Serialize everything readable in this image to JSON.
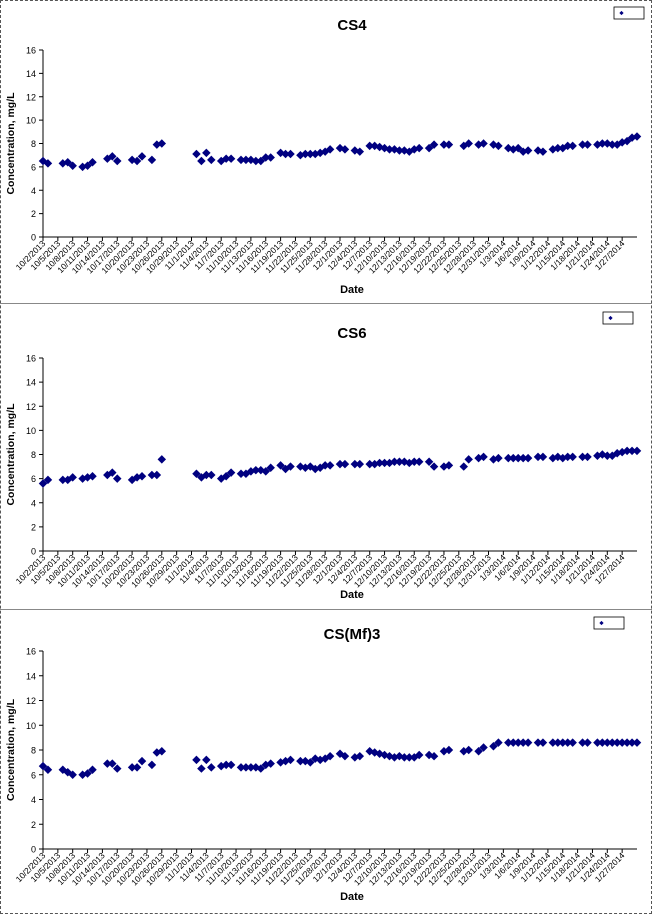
{
  "chart_data": [
    {
      "type": "scatter",
      "title": "CS4",
      "xlabel": "Date",
      "ylabel": "Concentration, mg/L",
      "ylim": [
        0,
        16
      ],
      "yticks": [
        0,
        2,
        4,
        6,
        8,
        10,
        12,
        14,
        16
      ],
      "grid": false,
      "legend_position": "top-right",
      "marker_color": "#000080",
      "xtick_labels": [
        "10/2/2013",
        "10/5/2013",
        "10/8/2013",
        "10/11/2013",
        "10/14/2013",
        "10/17/2013",
        "10/20/2013",
        "10/23/2013",
        "10/26/2013",
        "10/29/2013",
        "11/1/2013",
        "11/4/2013",
        "11/7/2013",
        "11/10/2013",
        "11/13/2013",
        "11/16/2013",
        "11/19/2013",
        "11/22/2013",
        "11/25/2013",
        "11/28/2013",
        "12/1/2013",
        "12/4/2013",
        "12/7/2013",
        "12/10/2013",
        "12/13/2013",
        "12/16/2013",
        "12/19/2013",
        "12/22/2013",
        "12/25/2013",
        "12/28/2013",
        "12/31/2013",
        "1/3/2014",
        "1/6/2014",
        "1/9/2014",
        "1/12/2014",
        "1/15/2014",
        "1/18/2014",
        "1/21/2014",
        "1/24/2014",
        "1/27/2014"
      ],
      "series": [
        {
          "x": [
            "10/2/2013",
            "10/3/2013",
            "10/6/2013",
            "10/7/2013",
            "10/8/2013",
            "10/10/2013",
            "10/11/2013",
            "10/12/2013",
            "10/15/2013",
            "10/16/2013",
            "10/17/2013",
            "10/20/2013",
            "10/21/2013",
            "10/22/2013",
            "10/24/2013",
            "10/25/2013",
            "10/26/2013",
            "11/2/2013",
            "11/3/2013",
            "11/4/2013",
            "11/5/2013",
            "11/7/2013",
            "11/8/2013",
            "11/9/2013",
            "11/11/2013",
            "11/12/2013",
            "11/13/2013",
            "11/14/2013",
            "11/15/2013",
            "11/16/2013",
            "11/17/2013",
            "11/19/2013",
            "11/20/2013",
            "11/21/2013",
            "11/23/2013",
            "11/24/2013",
            "11/25/2013",
            "11/26/2013",
            "11/27/2013",
            "11/28/2013",
            "11/29/2013",
            "12/1/2013",
            "12/2/2013",
            "12/4/2013",
            "12/5/2013",
            "12/7/2013",
            "12/8/2013",
            "12/9/2013",
            "12/10/2013",
            "12/11/2013",
            "12/12/2013",
            "12/13/2013",
            "12/14/2013",
            "12/15/2013",
            "12/16/2013",
            "12/17/2013",
            "12/19/2013",
            "12/20/2013",
            "12/22/2013",
            "12/23/2013",
            "12/26/2013",
            "12/27/2013",
            "12/29/2013",
            "12/30/2013",
            "1/1/2014",
            "1/2/2014",
            "1/4/2014",
            "1/5/2014",
            "1/6/2014",
            "1/7/2014",
            "1/8/2014",
            "1/10/2014",
            "1/11/2014",
            "1/13/2014",
            "1/14/2014",
            "1/15/2014",
            "1/16/2014",
            "1/17/2014",
            "1/19/2014",
            "1/20/2014",
            "1/22/2014",
            "1/23/2014",
            "1/24/2014",
            "1/25/2014",
            "1/26/2014",
            "1/27/2014",
            "1/28/2014",
            "1/29/2014",
            "1/30/2014"
          ],
          "y": [
            6.5,
            6.3,
            6.3,
            6.4,
            6.1,
            6.0,
            6.1,
            6.4,
            6.7,
            6.9,
            6.5,
            6.6,
            6.5,
            6.9,
            6.6,
            7.9,
            8.0,
            7.1,
            6.5,
            7.2,
            6.6,
            6.5,
            6.7,
            6.7,
            6.6,
            6.6,
            6.6,
            6.5,
            6.5,
            6.8,
            6.8,
            7.2,
            7.1,
            7.1,
            7.0,
            7.1,
            7.1,
            7.1,
            7.2,
            7.3,
            7.5,
            7.6,
            7.5,
            7.4,
            7.3,
            7.8,
            7.8,
            7.7,
            7.6,
            7.5,
            7.5,
            7.4,
            7.4,
            7.3,
            7.5,
            7.6,
            7.6,
            7.9,
            7.9,
            7.9,
            7.8,
            8.0,
            7.9,
            8.0,
            7.9,
            7.8,
            7.6,
            7.5,
            7.6,
            7.3,
            7.4,
            7.4,
            7.3,
            7.5,
            7.6,
            7.6,
            7.8,
            7.8,
            7.9,
            7.9,
            7.9,
            8.0,
            8.0,
            7.9,
            7.9,
            8.1,
            8.2,
            8.5,
            8.6
          ]
        }
      ]
    },
    {
      "type": "scatter",
      "title": "CS6",
      "xlabel": "Date",
      "ylabel": "Concentration, mg/L",
      "ylim": [
        0,
        16
      ],
      "yticks": [
        0,
        2,
        4,
        6,
        8,
        10,
        12,
        14,
        16
      ],
      "grid": false,
      "legend_position": "top-right",
      "marker_color": "#000080",
      "xtick_labels": [
        "10/2/2013",
        "10/5/2013",
        "10/8/2013",
        "10/11/2013",
        "10/14/2013",
        "10/17/2013",
        "10/20/2013",
        "10/23/2013",
        "10/26/2013",
        "10/29/2013",
        "11/1/2013",
        "11/4/2013",
        "11/7/2013",
        "11/10/2013",
        "11/13/2013",
        "11/16/2013",
        "11/19/2013",
        "11/22/2013",
        "11/25/2013",
        "11/28/2013",
        "12/1/2013",
        "12/4/2013",
        "12/7/2013",
        "12/10/2013",
        "12/13/2013",
        "12/16/2013",
        "12/19/2013",
        "12/22/2013",
        "12/25/2013",
        "12/28/2013",
        "12/31/2013",
        "1/3/2014",
        "1/6/2014",
        "1/9/2014",
        "1/12/2014",
        "1/15/2014",
        "1/18/2014",
        "1/21/2014",
        "1/24/2014",
        "1/27/2014"
      ],
      "series": [
        {
          "x": [
            "10/2/2013",
            "10/3/2013",
            "10/6/2013",
            "10/7/2013",
            "10/8/2013",
            "10/10/2013",
            "10/11/2013",
            "10/12/2013",
            "10/15/2013",
            "10/16/2013",
            "10/17/2013",
            "10/20/2013",
            "10/21/2013",
            "10/22/2013",
            "10/24/2013",
            "10/25/2013",
            "10/26/2013",
            "11/2/2013",
            "11/3/2013",
            "11/4/2013",
            "11/5/2013",
            "11/7/2013",
            "11/8/2013",
            "11/9/2013",
            "11/11/2013",
            "11/12/2013",
            "11/13/2013",
            "11/14/2013",
            "11/15/2013",
            "11/16/2013",
            "11/17/2013",
            "11/19/2013",
            "11/20/2013",
            "11/21/2013",
            "11/23/2013",
            "11/24/2013",
            "11/25/2013",
            "11/26/2013",
            "11/27/2013",
            "11/28/2013",
            "11/29/2013",
            "12/1/2013",
            "12/2/2013",
            "12/4/2013",
            "12/5/2013",
            "12/7/2013",
            "12/8/2013",
            "12/9/2013",
            "12/10/2013",
            "12/11/2013",
            "12/12/2013",
            "12/13/2013",
            "12/14/2013",
            "12/15/2013",
            "12/16/2013",
            "12/17/2013",
            "12/19/2013",
            "12/20/2013",
            "12/22/2013",
            "12/23/2013",
            "12/26/2013",
            "12/27/2013",
            "12/29/2013",
            "12/30/2013",
            "1/1/2014",
            "1/2/2014",
            "1/4/2014",
            "1/5/2014",
            "1/6/2014",
            "1/7/2014",
            "1/8/2014",
            "1/10/2014",
            "1/11/2014",
            "1/13/2014",
            "1/14/2014",
            "1/15/2014",
            "1/16/2014",
            "1/17/2014",
            "1/19/2014",
            "1/20/2014",
            "1/22/2014",
            "1/23/2014",
            "1/24/2014",
            "1/25/2014",
            "1/26/2014",
            "1/27/2014",
            "1/28/2014",
            "1/29/2014",
            "1/30/2014"
          ],
          "y": [
            5.6,
            5.9,
            5.9,
            5.9,
            6.1,
            6.0,
            6.1,
            6.2,
            6.3,
            6.5,
            6.0,
            5.9,
            6.1,
            6.2,
            6.3,
            6.3,
            7.6,
            6.4,
            6.1,
            6.3,
            6.3,
            6.0,
            6.2,
            6.5,
            6.4,
            6.4,
            6.6,
            6.7,
            6.7,
            6.6,
            6.9,
            7.1,
            6.8,
            7.0,
            7.0,
            6.9,
            7.0,
            6.8,
            6.9,
            7.1,
            7.1,
            7.2,
            7.2,
            7.2,
            7.2,
            7.2,
            7.2,
            7.3,
            7.3,
            7.3,
            7.4,
            7.4,
            7.4,
            7.3,
            7.4,
            7.4,
            7.4,
            7.0,
            7.0,
            7.1,
            7.0,
            7.6,
            7.7,
            7.8,
            7.6,
            7.7,
            7.7,
            7.7,
            7.7,
            7.7,
            7.7,
            7.8,
            7.8,
            7.7,
            7.8,
            7.7,
            7.8,
            7.8,
            7.8,
            7.8,
            7.9,
            8.0,
            7.9,
            7.9,
            8.1,
            8.2,
            8.3,
            8.3,
            8.3
          ]
        }
      ]
    },
    {
      "type": "scatter",
      "title": "CS(Mf)3",
      "xlabel": "Date",
      "ylabel": "Concentration, mg/L",
      "ylim": [
        0,
        16
      ],
      "yticks": [
        0,
        2,
        4,
        6,
        8,
        10,
        12,
        14,
        16
      ],
      "grid": false,
      "legend_position": "top-right",
      "marker_color": "#000080",
      "xtick_labels": [
        "10/2/2013",
        "10/5/2013",
        "10/8/2013",
        "10/11/2013",
        "10/14/2013",
        "10/17/2013",
        "10/20/2013",
        "10/23/2013",
        "10/26/2013",
        "10/29/2013",
        "11/1/2013",
        "11/4/2013",
        "11/7/2013",
        "11/10/2013",
        "11/13/2013",
        "11/16/2013",
        "11/19/2013",
        "11/22/2013",
        "11/25/2013",
        "11/28/2013",
        "12/1/2013",
        "12/4/2013",
        "12/7/2013",
        "12/10/2013",
        "12/13/2013",
        "12/16/2013",
        "12/19/2013",
        "12/22/2013",
        "12/25/2013",
        "12/28/2013",
        "12/31/2013",
        "1/3/2014",
        "1/6/2014",
        "1/9/2014",
        "1/12/2014",
        "1/15/2014",
        "1/18/2014",
        "1/21/2014",
        "1/24/2014",
        "1/27/2014"
      ],
      "series": [
        {
          "x": [
            "10/2/2013",
            "10/3/2013",
            "10/6/2013",
            "10/7/2013",
            "10/8/2013",
            "10/10/2013",
            "10/11/2013",
            "10/12/2013",
            "10/15/2013",
            "10/16/2013",
            "10/17/2013",
            "10/20/2013",
            "10/21/2013",
            "10/22/2013",
            "10/24/2013",
            "10/25/2013",
            "10/26/2013",
            "11/2/2013",
            "11/3/2013",
            "11/4/2013",
            "11/5/2013",
            "11/7/2013",
            "11/8/2013",
            "11/9/2013",
            "11/11/2013",
            "11/12/2013",
            "11/13/2013",
            "11/14/2013",
            "11/15/2013",
            "11/16/2013",
            "11/17/2013",
            "11/19/2013",
            "11/20/2013",
            "11/21/2013",
            "11/23/2013",
            "11/24/2013",
            "11/25/2013",
            "11/26/2013",
            "11/27/2013",
            "11/28/2013",
            "11/29/2013",
            "12/1/2013",
            "12/2/2013",
            "12/4/2013",
            "12/5/2013",
            "12/7/2013",
            "12/8/2013",
            "12/9/2013",
            "12/10/2013",
            "12/11/2013",
            "12/12/2013",
            "12/13/2013",
            "12/14/2013",
            "12/15/2013",
            "12/16/2013",
            "12/17/2013",
            "12/19/2013",
            "12/20/2013",
            "12/22/2013",
            "12/23/2013",
            "12/26/2013",
            "12/27/2013",
            "12/29/2013",
            "12/30/2013",
            "1/1/2014",
            "1/2/2014",
            "1/4/2014",
            "1/5/2014",
            "1/6/2014",
            "1/7/2014",
            "1/8/2014",
            "1/10/2014",
            "1/11/2014",
            "1/13/2014",
            "1/14/2014",
            "1/15/2014",
            "1/16/2014",
            "1/17/2014",
            "1/19/2014",
            "1/20/2014",
            "1/22/2014",
            "1/23/2014",
            "1/24/2014",
            "1/25/2014",
            "1/26/2014",
            "1/27/2014",
            "1/28/2014",
            "1/29/2014",
            "1/30/2014"
          ],
          "y": [
            6.7,
            6.4,
            6.4,
            6.2,
            6.0,
            6.0,
            6.1,
            6.4,
            6.9,
            6.9,
            6.5,
            6.6,
            6.6,
            7.1,
            6.8,
            7.8,
            7.9,
            7.2,
            6.5,
            7.2,
            6.6,
            6.7,
            6.8,
            6.8,
            6.6,
            6.6,
            6.6,
            6.6,
            6.5,
            6.8,
            6.9,
            7.0,
            7.1,
            7.2,
            7.1,
            7.1,
            7.0,
            7.3,
            7.2,
            7.3,
            7.5,
            7.7,
            7.5,
            7.4,
            7.5,
            7.9,
            7.8,
            7.7,
            7.6,
            7.5,
            7.4,
            7.5,
            7.4,
            7.4,
            7.4,
            7.6,
            7.6,
            7.5,
            7.9,
            8.0,
            7.9,
            8.0,
            7.9,
            8.2,
            8.3,
            8.6,
            8.6,
            8.6,
            8.6,
            8.6,
            8.6,
            8.6,
            8.6,
            8.6,
            8.6,
            8.6,
            8.6,
            8.6,
            8.6,
            8.6,
            8.6,
            8.6,
            8.6,
            8.6,
            8.6,
            8.6,
            8.6,
            8.6,
            8.6
          ]
        }
      ]
    }
  ]
}
